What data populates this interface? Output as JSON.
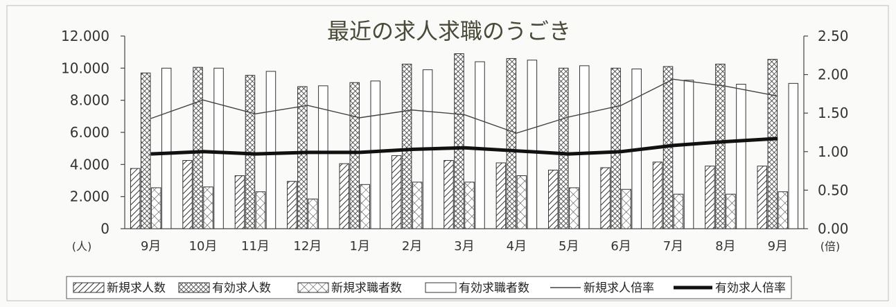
{
  "chart_data": {
    "type": "bar",
    "title": "最近の求人求職のうごき",
    "categories": [
      "9月",
      "10月",
      "11月",
      "12月",
      "1月",
      "2月",
      "3月",
      "4月",
      "5月",
      "6月",
      "7月",
      "8月",
      "9月"
    ],
    "left_axis": {
      "unit": "(人)",
      "ylim": [
        0,
        12000
      ],
      "ticks": [
        "0",
        "2.000",
        "4.000",
        "6.000",
        "8.000",
        "10.000",
        "12.000"
      ],
      "tick_values": [
        0,
        2000,
        4000,
        6000,
        8000,
        10000,
        12000
      ]
    },
    "right_axis": {
      "unit": "(倍)",
      "ylim": [
        0,
        2.5
      ],
      "ticks": [
        "0.00",
        "0.50",
        "1.00",
        "1.50",
        "2.00",
        "2.50"
      ],
      "tick_values": [
        0,
        0.5,
        1.0,
        1.5,
        2.0,
        2.5
      ]
    },
    "series": [
      {
        "name": "新規求人数",
        "kind": "bar",
        "axis": "left",
        "pattern": "diagonal-hatch",
        "values": [
          3750,
          4250,
          3300,
          2950,
          4050,
          4550,
          4250,
          4100,
          3650,
          3800,
          4150,
          3900,
          3900
        ]
      },
      {
        "name": "有効求人数",
        "kind": "bar",
        "axis": "left",
        "pattern": "crosshatch",
        "values": [
          9700,
          10050,
          9550,
          8850,
          9100,
          10250,
          10900,
          10600,
          10000,
          10000,
          10100,
          10250,
          10550
        ]
      },
      {
        "name": "新規求職者数",
        "kind": "bar",
        "axis": "left",
        "pattern": "cross-diagonal",
        "values": [
          2550,
          2600,
          2300,
          1850,
          2750,
          2900,
          2900,
          3300,
          2550,
          2450,
          2150,
          2150,
          2300
        ]
      },
      {
        "name": "有効求職者数",
        "kind": "bar",
        "axis": "left",
        "pattern": "white",
        "values": [
          10000,
          10000,
          9800,
          8900,
          9200,
          9900,
          10400,
          10500,
          10150,
          9950,
          9250,
          9000,
          9050
        ]
      },
      {
        "name": "新規求人倍率",
        "kind": "line",
        "axis": "right",
        "style": "thin",
        "values": [
          1.43,
          1.67,
          1.49,
          1.6,
          1.44,
          1.54,
          1.48,
          1.24,
          1.45,
          1.6,
          1.94,
          1.85,
          1.72
        ]
      },
      {
        "name": "有効求人倍率",
        "kind": "line",
        "axis": "right",
        "style": "thick",
        "values": [
          0.97,
          1.0,
          0.97,
          0.99,
          0.99,
          1.03,
          1.05,
          1.01,
          0.97,
          1.0,
          1.08,
          1.13,
          1.17
        ]
      }
    ],
    "grid": false,
    "legend_position": "bottom"
  },
  "colors": {
    "line": "#222222",
    "bar_stroke": "#333333",
    "title": "#4a4a3a"
  }
}
